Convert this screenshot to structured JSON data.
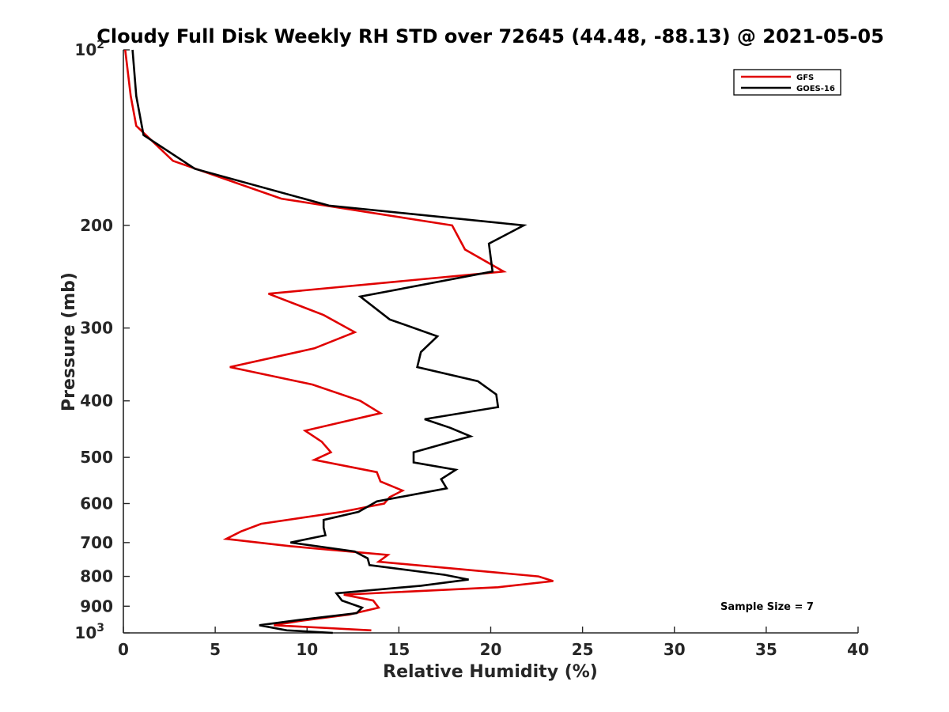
{
  "chart_data": {
    "type": "line",
    "title": "Cloudy Full Disk Weekly RH STD over 72645 (44.48, -88.13) @ 2021-05-05",
    "xlabel": "Relative Humidity (%)",
    "ylabel": "Pressure (mb)",
    "xlim": [
      0,
      40
    ],
    "ylim": [
      100,
      1000
    ],
    "yscale": "log",
    "y_reversed": true,
    "grid": false,
    "legend_position": "top-right",
    "xticks": [
      {
        "value": 0,
        "label": "0"
      },
      {
        "value": 5,
        "label": "5"
      },
      {
        "value": 10,
        "label": "10"
      },
      {
        "value": 15,
        "label": "15"
      },
      {
        "value": 20,
        "label": "20"
      },
      {
        "value": 25,
        "label": "25"
      },
      {
        "value": 30,
        "label": "30"
      },
      {
        "value": 35,
        "label": "35"
      },
      {
        "value": 40,
        "label": "40"
      }
    ],
    "yticks": [
      {
        "value": 100,
        "label": "10",
        "sup": "2"
      },
      {
        "value": 200,
        "label": "200",
        "sup": ""
      },
      {
        "value": 300,
        "label": "300",
        "sup": ""
      },
      {
        "value": 400,
        "label": "400",
        "sup": ""
      },
      {
        "value": 500,
        "label": "500",
        "sup": ""
      },
      {
        "value": 600,
        "label": "600",
        "sup": ""
      },
      {
        "value": 700,
        "label": "700",
        "sup": ""
      },
      {
        "value": 800,
        "label": "800",
        "sup": ""
      },
      {
        "value": 900,
        "label": "900",
        "sup": ""
      },
      {
        "value": 1000,
        "label": "10",
        "sup": "3"
      }
    ],
    "series": [
      {
        "name": "GFS",
        "color": "#e00000",
        "x": [
          0.1,
          0.4,
          0.7,
          2.7,
          8.6,
          17.9,
          18.6,
          20.7,
          7.9,
          10.9,
          12.6,
          10.4,
          5.8,
          10.3,
          12.9,
          14.0,
          9.9,
          10.8,
          11.3,
          10.4,
          13.8,
          14.0,
          15.2,
          14.5,
          14.2,
          11.9,
          7.5,
          6.4,
          5.6,
          9.1,
          14.4,
          13.9,
          22.6,
          23.4,
          20.4,
          12.0,
          13.6,
          13.9,
          12.3,
          9.5,
          8.2,
          13.5
        ],
        "y": [
          100,
          120,
          135,
          155,
          180,
          200,
          220,
          240,
          262,
          285,
          305,
          325,
          350,
          375,
          400,
          420,
          450,
          470,
          490,
          505,
          530,
          550,
          570,
          585,
          600,
          620,
          650,
          670,
          690,
          710,
          735,
          755,
          800,
          815,
          835,
          860,
          880,
          905,
          930,
          955,
          970,
          990
        ]
      },
      {
        "name": "GOES-16",
        "color": "#000000",
        "x": [
          0.5,
          0.7,
          1.1,
          3.9,
          11.2,
          21.8,
          19.9,
          20.1,
          12.9,
          14.5,
          17.1,
          16.2,
          16.0,
          19.3,
          20.3,
          20.4,
          16.4,
          17.8,
          18.9,
          15.8,
          15.8,
          18.1,
          17.3,
          17.6,
          13.8,
          12.8,
          10.9,
          10.9,
          11.0,
          9.1,
          12.6,
          13.3,
          13.4,
          17.5,
          18.8,
          16.2,
          11.6,
          11.9,
          13.0,
          12.7,
          9.6,
          7.4,
          8.9,
          11.4
        ],
        "y": [
          100,
          120,
          140,
          160,
          185,
          200,
          215,
          240,
          265,
          290,
          310,
          330,
          350,
          370,
          390,
          410,
          430,
          445,
          460,
          490,
          510,
          525,
          545,
          565,
          595,
          620,
          640,
          660,
          680,
          700,
          725,
          745,
          765,
          795,
          810,
          830,
          855,
          880,
          905,
          925,
          950,
          970,
          990,
          1000
        ]
      }
    ],
    "legend": {
      "entries": [
        "GFS",
        "GOES-16"
      ]
    },
    "annotations": [
      {
        "text": "Sample Size = 7"
      }
    ]
  }
}
